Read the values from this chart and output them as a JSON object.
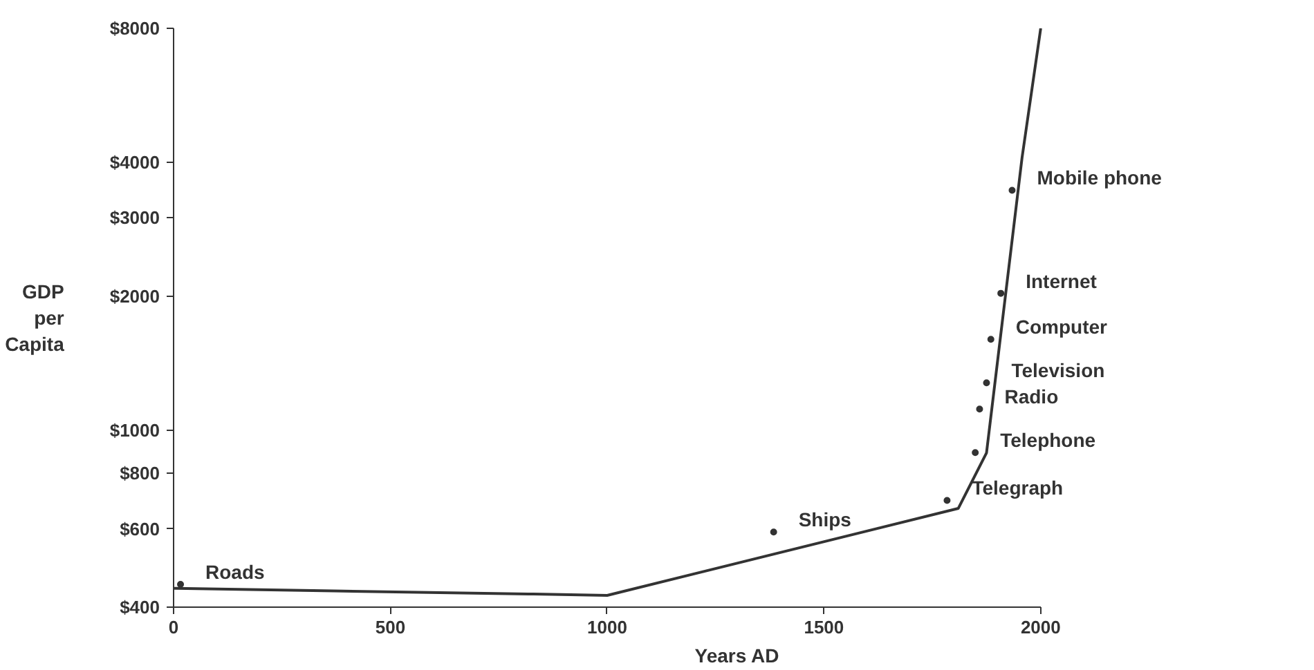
{
  "chart_data": {
    "type": "line",
    "xlabel": "Years AD",
    "ylabel": "GDP per Capita",
    "log": "y",
    "grid": false,
    "xlim": [
      0,
      2000
    ],
    "xticks": [
      0,
      500,
      1000,
      1500,
      2000
    ],
    "ylim": [
      400,
      8000
    ],
    "yticks": [
      {
        "value": 400,
        "label": "$400"
      },
      {
        "value": 600,
        "label": "$600"
      },
      {
        "value": 800,
        "label": "$800"
      },
      {
        "value": 1000,
        "label": "$1000"
      },
      {
        "value": 2000,
        "label": "$2000"
      },
      {
        "value": 3000,
        "label": "$3000"
      },
      {
        "value": 4000,
        "label": "$4000"
      },
      {
        "value": 8000,
        "label": "$8000"
      }
    ],
    "series": [
      {
        "color": "#333333",
        "marker": "none",
        "line_style": "solid",
        "x": [
          0,
          370,
          830,
          1000,
          1810,
          1875,
          1957,
          2000
        ],
        "values": [
          441,
          435,
          428,
          425,
          667,
          889,
          4100,
          8000
        ]
      },
      {
        "type": "scatter",
        "color": "#333333",
        "marker": "circle",
        "x": [
          16,
          1384,
          1784,
          1849,
          1859,
          1875,
          1885,
          1908,
          1934
        ],
        "values": [
          450,
          590,
          695,
          890,
          1115,
          1277,
          1600,
          2030,
          3460
        ]
      }
    ],
    "annotations": [
      {
        "text": "Roads",
        "x": 16,
        "y": 450
      },
      {
        "text": "Ships",
        "x": 1384,
        "y": 590
      },
      {
        "text": "Telegraph",
        "x": 1784,
        "y": 695
      },
      {
        "text": "Telephone",
        "x": 1849,
        "y": 890
      },
      {
        "text": "Radio",
        "x": 1859,
        "y": 1115
      },
      {
        "text": "Television",
        "x": 1875,
        "y": 1277
      },
      {
        "text": "Computer",
        "x": 1885,
        "y": 1600
      },
      {
        "text": "Internet",
        "x": 1908,
        "y": 2030
      },
      {
        "text": "Mobile phone",
        "x": 1934,
        "y": 3460
      }
    ]
  }
}
